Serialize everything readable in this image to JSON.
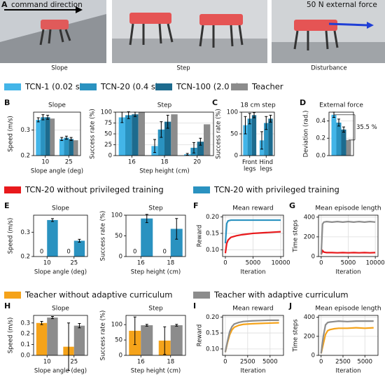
{
  "photos": {
    "panel": "A",
    "annotations": [
      "command direction",
      "50 N external force"
    ],
    "captions": [
      "Slope",
      "Step",
      "Disturbance"
    ]
  },
  "chart_data": [
    {
      "type": "bar",
      "panel": "B",
      "title": "Slope",
      "xlabel": "Slope angle (deg)",
      "ylabel": "Speed (m/s)",
      "legend": "above",
      "categories": [
        "10",
        "25"
      ],
      "ylim": [
        0.2,
        0.37
      ],
      "yticks": [
        0.2,
        0.3
      ],
      "grid": true,
      "series": [
        {
          "name": "TCN-1 (0.02 s)",
          "color": "#43b5e8",
          "values": [
            0.34,
            0.265
          ],
          "errors": [
            0.008,
            0.006
          ]
        },
        {
          "name": "TCN-20 (0.4 s)",
          "color": "#2a92c0",
          "values": [
            0.35,
            0.27
          ],
          "errors": [
            0.01,
            0.006
          ]
        },
        {
          "name": "TCN-100 (2.0 s)",
          "color": "#1d6b8e",
          "values": [
            0.35,
            0.265
          ],
          "errors": [
            0.008,
            0.006
          ]
        },
        {
          "name": "Teacher",
          "color": "#8c8c8c",
          "values": [
            0.345,
            0.26
          ],
          "errors": [
            0.0,
            0.0
          ]
        }
      ]
    },
    {
      "type": "bar",
      "title": "Step",
      "xlabel": "Step height (cm)",
      "ylabel": "Success rate (%)",
      "categories": [
        "16",
        "18",
        "20"
      ],
      "ylim": [
        0,
        100
      ],
      "yticks": [
        0,
        25,
        50,
        75,
        100
      ],
      "grid": true,
      "series": [
        {
          "name": "TCN-1 (0.02 s)",
          "color": "#43b5e8",
          "values": [
            88,
            22,
            3
          ],
          "errors": [
            12,
            15,
            2
          ]
        },
        {
          "name": "TCN-20 (0.4 s)",
          "color": "#2a92c0",
          "values": [
            93,
            60,
            18
          ],
          "errors": [
            8,
            18,
            12
          ]
        },
        {
          "name": "TCN-100 (2.0 s)",
          "color": "#1d6b8e",
          "values": [
            95,
            78,
            32
          ],
          "errors": [
            5,
            15,
            8
          ]
        },
        {
          "name": "Teacher",
          "color": "#8c8c8c",
          "values": [
            100,
            95,
            72
          ],
          "errors": [
            0,
            0,
            0
          ]
        }
      ]
    },
    {
      "type": "bar",
      "panel": "C",
      "title": "18 cm step",
      "ylabel": "Success rate (%)",
      "categories": [
        "Front legs",
        "Hind legs"
      ],
      "ylim": [
        0,
        100
      ],
      "yticks": [
        0,
        50,
        100
      ],
      "grid": true,
      "series": [
        {
          "name": "TCN-1 (0.02 s)",
          "color": "#43b5e8",
          "values": [
            70,
            35
          ],
          "errors": [
            20,
            20
          ]
        },
        {
          "name": "TCN-20 (0.4 s)",
          "color": "#2a92c0",
          "values": [
            85,
            75
          ],
          "errors": [
            12,
            15
          ]
        },
        {
          "name": "TCN-100 (2.0 s)",
          "color": "#1d6b8e",
          "values": [
            93,
            85
          ],
          "errors": [
            6,
            8
          ]
        }
      ]
    },
    {
      "type": "bar",
      "panel": "D",
      "title": "External force",
      "ylabel": "Deviation (rad.)",
      "annotation": "35.5 %",
      "categories": [
        null
      ],
      "ylim": [
        0,
        0.5
      ],
      "yticks": [
        {
          "value": 0,
          "label": "0.0"
        },
        0.2,
        0.4
      ],
      "grid": true,
      "series": [
        {
          "name": "TCN-1 (0.02 s)",
          "color": "#43b5e8",
          "values": [
            0.47
          ],
          "errors": [
            0.03
          ]
        },
        {
          "name": "TCN-20 (0.4 s)",
          "color": "#2a92c0",
          "values": [
            0.38
          ],
          "errors": [
            0.04
          ]
        },
        {
          "name": "TCN-100 (2.0 s)",
          "color": "#1d6b8e",
          "values": [
            0.3
          ],
          "errors": [
            0.03
          ]
        },
        {
          "name": "Teacher",
          "color": "#8c8c8c",
          "values": [
            0.18
          ],
          "errors": [
            0.0
          ]
        }
      ]
    },
    {
      "type": "bar",
      "panel": "E",
      "title": "Slope",
      "xlabel": "Slope angle (deg)",
      "ylabel": "Speed (m/s)",
      "legend": "above",
      "categories": [
        "10",
        "25"
      ],
      "ylim": [
        0.2,
        0.37
      ],
      "yticks": [
        0.2,
        0.3
      ],
      "grid": false,
      "series": [
        {
          "name": "TCN-20 without privileged training",
          "color": "#e8191c",
          "values": [
            0,
            0
          ],
          "value_labels": [
            "0",
            "0"
          ],
          "errors": [
            0,
            0
          ]
        },
        {
          "name": "TCN-20 with privileged training",
          "color": "#2a92c0",
          "values": [
            0.35,
            0.265
          ],
          "errors": [
            0.006,
            0.006
          ]
        }
      ]
    },
    {
      "type": "bar",
      "title": "Step",
      "xlabel": "Step height (cm)",
      "ylabel": "Success rate (%)",
      "categories": [
        "16",
        "18"
      ],
      "ylim": [
        0,
        100
      ],
      "yticks": [
        0,
        50,
        100
      ],
      "grid": false,
      "series": [
        {
          "name": "TCN-20 without privileged training",
          "color": "#e8191c",
          "values": [
            0,
            0
          ],
          "value_labels": [
            "0",
            "0"
          ],
          "errors": [
            0,
            0
          ]
        },
        {
          "name": "TCN-20 with privileged training",
          "color": "#2a92c0",
          "values": [
            92,
            67
          ],
          "errors": [
            10,
            25
          ]
        }
      ]
    },
    {
      "type": "line",
      "panel": "F",
      "title": "Mean reward",
      "xlabel": "Iteration",
      "ylabel": "Reward",
      "x": [
        0,
        250,
        500,
        1000,
        2000,
        3000,
        4000,
        5000,
        6000,
        7000,
        8000,
        9000,
        10000
      ],
      "xlim": [
        -500,
        10500
      ],
      "xticks": [
        0,
        5000,
        10000
      ],
      "ylim": [
        0.08,
        0.205
      ],
      "yticks": [
        {
          "value": 0.1,
          "label": "0.10"
        },
        0.15,
        {
          "value": 0.2,
          "label": "0.20"
        }
      ],
      "grid": true,
      "series": [
        {
          "name": "TCN-20 without privileged training",
          "color": "#e8191c",
          "values": [
            0.09,
            0.12,
            0.13,
            0.138,
            0.143,
            0.146,
            0.148,
            0.15,
            0.151,
            0.152,
            0.153,
            0.154,
            0.155
          ]
        },
        {
          "name": "TCN-20 with privileged training",
          "color": "#2a92c0",
          "values": [
            0.12,
            0.18,
            0.188,
            0.19,
            0.19,
            0.19,
            0.19,
            0.19,
            0.19,
            0.19,
            0.19,
            0.19,
            0.19
          ]
        }
      ]
    },
    {
      "type": "line",
      "panel": "G",
      "title": "Mean episode length",
      "xlabel": "Iteration",
      "ylabel": "Time steps",
      "x": [
        0,
        250,
        500,
        1000,
        2000,
        3000,
        4000,
        5000,
        6000,
        7000,
        8000,
        9000,
        10000
      ],
      "xlim": [
        -500,
        10500
      ],
      "xticks": [
        0,
        5000,
        10000
      ],
      "ylim": [
        0,
        420
      ],
      "yticks": [
        0,
        200,
        400
      ],
      "grid": true,
      "series": [
        {
          "name": "TCN-20 without privileged training",
          "color": "#e8191c",
          "values": [
            20,
            60,
            45,
            40,
            40,
            38,
            40,
            38,
            40,
            38,
            40,
            38,
            40
          ]
        },
        {
          "name": "TCN-20 with privileged training",
          "color": "#8c8c8c",
          "values": [
            20,
            330,
            350,
            355,
            350,
            355,
            350,
            355,
            350,
            355,
            350,
            355,
            350
          ]
        }
      ]
    },
    {
      "type": "bar",
      "panel": "H",
      "title": "Slope",
      "xlabel": "Slope angle (deg)",
      "ylabel": "Speed (m/s)",
      "legend": "above",
      "categories": [
        "10",
        "25"
      ],
      "ylim": [
        0,
        0.37
      ],
      "yticks": [
        {
          "value": 0,
          "label": "0.0"
        },
        0.1,
        0.2,
        0.3
      ],
      "grid": false,
      "series": [
        {
          "name": "Teacher without adaptive curriculum",
          "color": "#f5a31a",
          "values": [
            0.3,
            0.08
          ],
          "errors": [
            0.015,
            0.22
          ]
        },
        {
          "name": "Teacher with adaptive curriculum",
          "color": "#8c8c8c",
          "values": [
            0.35,
            0.275
          ],
          "errors": [
            0.01,
            0.02
          ]
        }
      ]
    },
    {
      "type": "bar",
      "title": "Step",
      "xlabel": "Step height (cm)",
      "ylabel": "Success rate (%)",
      "categories": [
        "16",
        "18"
      ],
      "ylim": [
        0,
        130
      ],
      "yticks": [
        0,
        50,
        100
      ],
      "grid": false,
      "series": [
        {
          "name": "Teacher without adaptive curriculum",
          "color": "#f5a31a",
          "values": [
            80,
            48
          ],
          "errors": [
            45,
            45
          ]
        },
        {
          "name": "Teacher with adaptive curriculum",
          "color": "#8c8c8c",
          "values": [
            98,
            98
          ],
          "errors": [
            3,
            3
          ]
        }
      ]
    },
    {
      "type": "line",
      "panel": "I",
      "title": "Mean reward",
      "xlabel": "Iteration",
      "ylabel": "Reward",
      "x": [
        0,
        250,
        500,
        750,
        1000,
        1500,
        2000,
        3000,
        4000,
        5000,
        6000
      ],
      "xlim": [
        -300,
        6500
      ],
      "xticks": [
        0,
        2500,
        5000
      ],
      "ylim": [
        0.08,
        0.205
      ],
      "yticks": [
        {
          "value": 0.1,
          "label": "0.10"
        },
        0.15,
        {
          "value": 0.2,
          "label": "0.20"
        }
      ],
      "grid": true,
      "series": [
        {
          "name": "Teacher without adaptive curriculum",
          "color": "#f5a31a",
          "values": [
            0.09,
            0.12,
            0.145,
            0.16,
            0.168,
            0.174,
            0.177,
            0.179,
            0.18,
            0.181,
            0.182
          ]
        },
        {
          "name": "Teacher with adaptive curriculum",
          "color": "#8c8c8c",
          "values": [
            0.09,
            0.125,
            0.155,
            0.17,
            0.178,
            0.183,
            0.186,
            0.188,
            0.189,
            0.19,
            0.19
          ]
        }
      ]
    },
    {
      "type": "line",
      "panel": "J",
      "title": "Mean episode length",
      "xlabel": "Iteration",
      "ylabel": "Time steps",
      "x": [
        0,
        250,
        500,
        750,
        1000,
        1500,
        2000,
        3000,
        4000,
        5000,
        6000
      ],
      "xlim": [
        -300,
        6500
      ],
      "xticks": [
        0,
        2500,
        5000
      ],
      "ylim": [
        0,
        420
      ],
      "yticks": [
        0,
        200,
        400
      ],
      "grid": true,
      "series": [
        {
          "name": "Teacher without adaptive curriculum",
          "color": "#f5a31a",
          "values": [
            20,
            120,
            220,
            260,
            270,
            280,
            285,
            285,
            290,
            285,
            290
          ]
        },
        {
          "name": "Teacher with adaptive curriculum",
          "color": "#8c8c8c",
          "values": [
            20,
            200,
            320,
            345,
            350,
            355,
            360,
            355,
            360,
            360,
            360
          ]
        }
      ]
    }
  ]
}
